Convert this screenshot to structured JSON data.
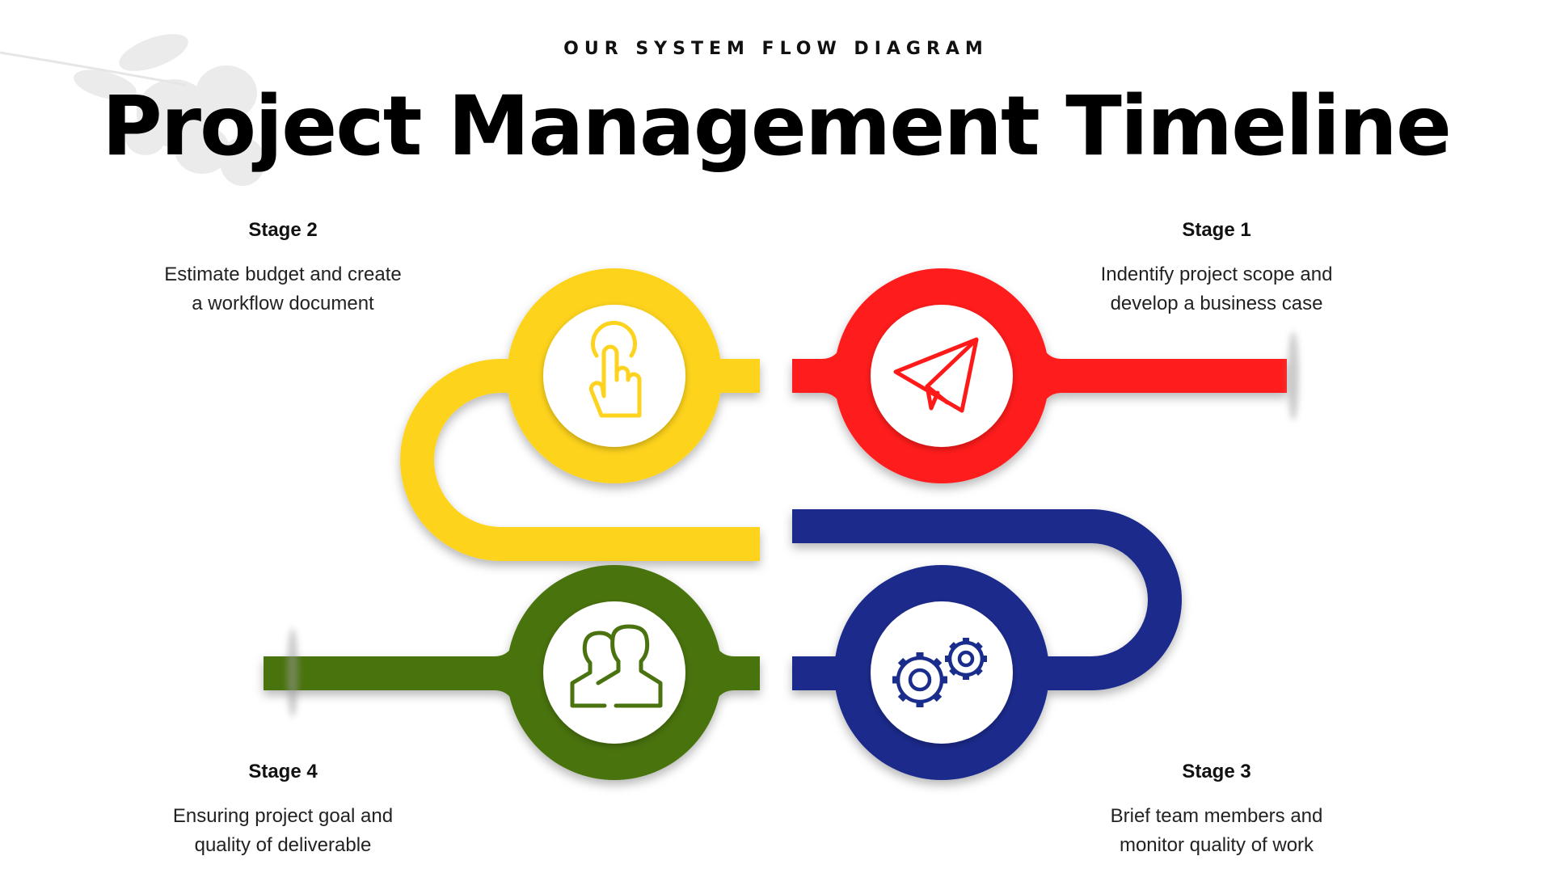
{
  "header": {
    "eyebrow": "OUR SYSTEM FLOW DIAGRAM",
    "title": "Project Management Timeline"
  },
  "stages": [
    {
      "label": "Stage 1",
      "description_line1": "Indentify project scope and",
      "description_line2": "develop a business case",
      "color": "#ff1a1a",
      "icon": "paper-plane-icon"
    },
    {
      "label": "Stage 2",
      "description_line1": "Estimate budget and create",
      "description_line2": "a workflow document",
      "color": "#fdd31f",
      "icon": "pointing-hand-icon"
    },
    {
      "label": "Stage 3",
      "description_line1": "Brief team members and",
      "description_line2": "monitor quality of work",
      "color": "#1a2c8c",
      "icon": "gears-icon"
    },
    {
      "label": "Stage 4",
      "description_line1": "Ensuring project goal and",
      "description_line2": "quality of deliverable",
      "color": "#4a7310",
      "icon": "team-users-icon"
    }
  ]
}
